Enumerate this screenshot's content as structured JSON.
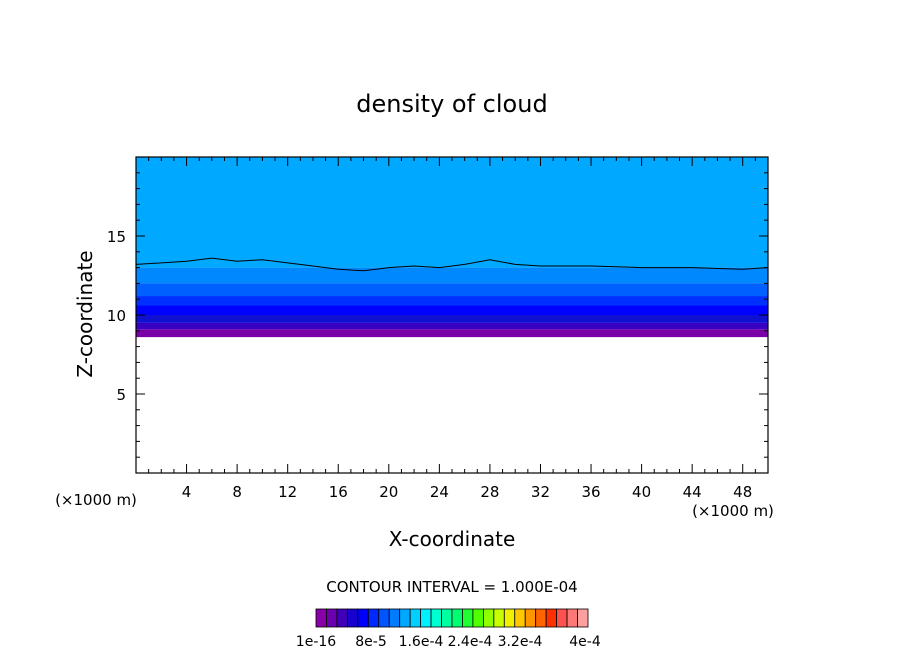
{
  "chart_data": {
    "type": "heatmap",
    "title": "density of cloud",
    "xlabel": "X-coordinate",
    "ylabel": "Z-coordinate",
    "x_unit": "(×1000 m)",
    "z_unit": "(×1000 m)",
    "xlim": [
      0,
      50
    ],
    "ylim": [
      0,
      20
    ],
    "x_ticks": [
      4,
      8,
      12,
      16,
      20,
      24,
      28,
      32,
      36,
      40,
      44,
      48
    ],
    "y_ticks": [
      5,
      10,
      15
    ],
    "grid": false,
    "contour_interval_label": "CONTOUR INTERVAL = 1.000E-04",
    "colorbar_labels": [
      "1e-16",
      "8e-5",
      "1.6e-4",
      "2.4e-4",
      "3.2e-4",
      "4e-4"
    ],
    "colorbar_colors": [
      "#8a00a8",
      "#6a00b0",
      "#4000b8",
      "#1800d0",
      "#0000ff",
      "#0028ff",
      "#0055ff",
      "#007cff",
      "#00a8ff",
      "#00cfff",
      "#00f0ff",
      "#00ffd0",
      "#00ffa0",
      "#00ff70",
      "#20ff30",
      "#50ff00",
      "#90ff00",
      "#c8ff00",
      "#f0f000",
      "#ffc800",
      "#ff9600",
      "#ff6400",
      "#ff3000",
      "#ff5050",
      "#ff7878",
      "#ffa0a0"
    ],
    "cloud_layers": [
      {
        "z_low": 8.6,
        "z_high": 9.1,
        "color": "#7a00a8"
      },
      {
        "z_low": 9.1,
        "z_high": 9.5,
        "color": "#3800c0"
      },
      {
        "z_low": 9.5,
        "z_high": 10.0,
        "color": "#1010d0"
      },
      {
        "z_low": 10.0,
        "z_high": 10.6,
        "color": "#0000ff"
      },
      {
        "z_low": 10.6,
        "z_high": 11.2,
        "color": "#0030ff"
      },
      {
        "z_low": 11.2,
        "z_high": 12.0,
        "color": "#0060ff"
      },
      {
        "z_low": 12.0,
        "z_high": 13.0,
        "color": "#0088ff"
      },
      {
        "z_low": 13.0,
        "z_high": 20.0,
        "color": "#00a8ff"
      }
    ],
    "contour_line_z": [
      [
        0,
        13.2
      ],
      [
        2,
        13.3
      ],
      [
        4,
        13.4
      ],
      [
        6,
        13.6
      ],
      [
        8,
        13.4
      ],
      [
        10,
        13.5
      ],
      [
        12,
        13.3
      ],
      [
        14,
        13.1
      ],
      [
        16,
        12.9
      ],
      [
        18,
        12.8
      ],
      [
        20,
        13.0
      ],
      [
        22,
        13.1
      ],
      [
        24,
        13.0
      ],
      [
        26,
        13.2
      ],
      [
        28,
        13.5
      ],
      [
        30,
        13.2
      ],
      [
        32,
        13.1
      ],
      [
        36,
        13.1
      ],
      [
        40,
        13.0
      ],
      [
        44,
        13.0
      ],
      [
        48,
        12.9
      ],
      [
        50,
        13.0
      ]
    ]
  }
}
